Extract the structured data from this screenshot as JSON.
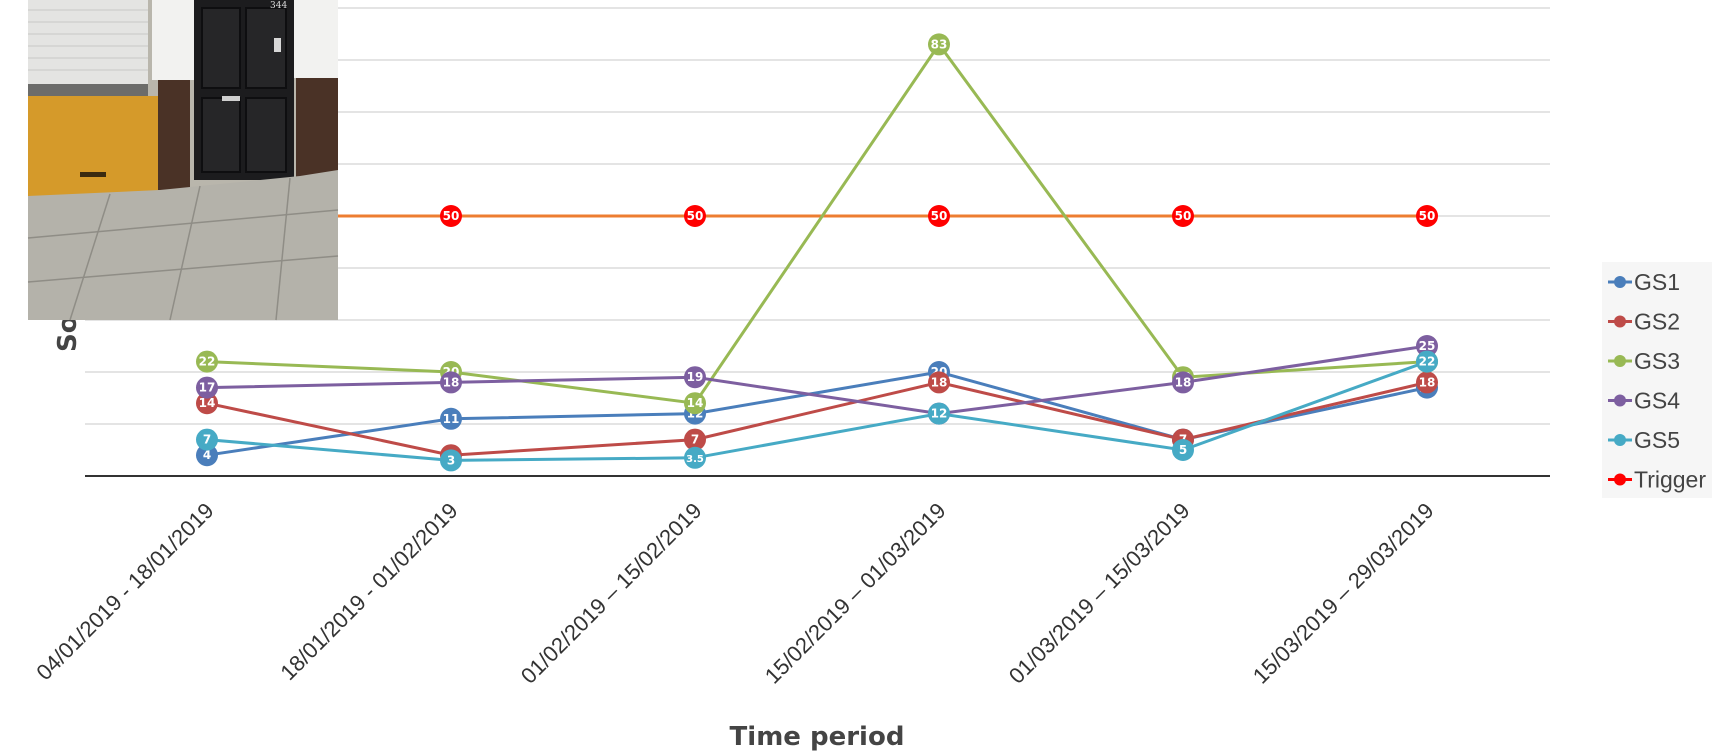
{
  "chart_data": {
    "type": "line",
    "xlabel": "Time period",
    "ylabel_partial": "So",
    "categories": [
      "04/01/2019 - 18/01/2019",
      "18/01/2019 - 01/02/2019",
      "01/02/2019 – 15/02/2019",
      "15/02/2019 – 01/03/2019",
      "01/03/2019 – 15/03/2019",
      "15/03/2019 – 29/03/2019"
    ],
    "ylim": [
      0,
      90
    ],
    "grid": true,
    "legend_position": "right",
    "series": [
      {
        "name": "GS1",
        "color": "#4a7ebb",
        "values": [
          4,
          11,
          12,
          20,
          7,
          17
        ],
        "labels": [
          "4",
          "11",
          "12",
          "20",
          "7",
          "17"
        ]
      },
      {
        "name": "GS2",
        "color": "#be4b48",
        "values": [
          14,
          4,
          7,
          18,
          7,
          18
        ],
        "labels": [
          "14",
          "4",
          "7",
          "18",
          "7",
          "18"
        ]
      },
      {
        "name": "GS3",
        "color": "#98b954",
        "values": [
          22,
          20,
          14,
          83,
          19,
          22
        ],
        "labels": [
          "22",
          "20",
          "14",
          "83",
          "19",
          "22"
        ]
      },
      {
        "name": "GS4",
        "color": "#7d5fa0",
        "values": [
          17,
          18,
          19,
          12,
          18,
          25
        ],
        "labels": [
          "17",
          "18",
          "19",
          "12",
          "18",
          "25"
        ]
      },
      {
        "name": "GS5",
        "color": "#46aac5",
        "values": [
          7,
          3,
          3.5,
          12,
          5,
          22
        ],
        "labels": [
          "7",
          "3",
          "3.5",
          "12",
          "5",
          "22"
        ]
      },
      {
        "name": "Trigger",
        "color": "#ff0000",
        "line_color": "#ed7d31",
        "values": [
          50,
          50,
          50,
          50,
          50,
          50
        ],
        "labels": [
          "50",
          "50",
          "50",
          "50",
          "50",
          "50"
        ],
        "hidden_points": [
          0
        ]
      }
    ]
  },
  "photo": {
    "door_number": "344"
  }
}
